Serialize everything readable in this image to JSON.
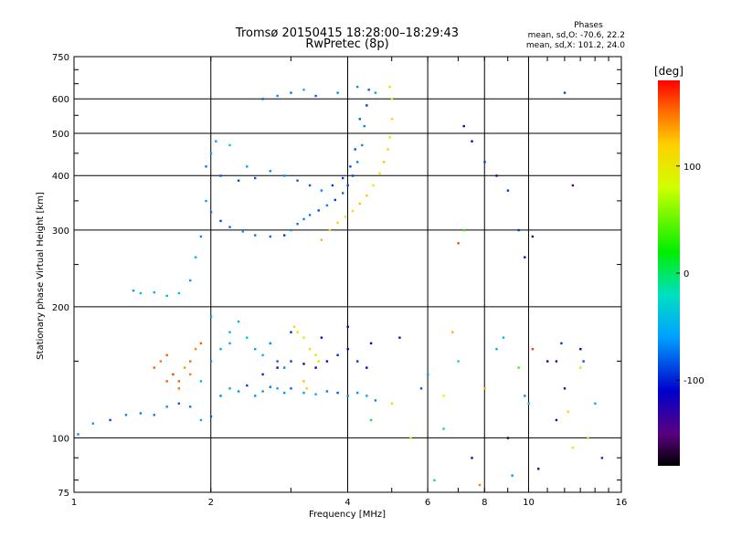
{
  "chart_data": {
    "type": "scatter",
    "title": "Tromsø 20150415 18:28:00–18:29:43",
    "subtitle": "RwPretec (8p)",
    "stats": {
      "heading": "Phases",
      "line1": "mean, sd,O: -70.6, 22.2",
      "line2": "mean, sd,X: 101.2, 24.0"
    },
    "xlabel": "Frequency [MHz]",
    "ylabel": "Stationary phase Virtual Height [km]",
    "x_scale": "log",
    "y_scale": "log",
    "xlim": [
      1,
      16
    ],
    "ylim": [
      75,
      750
    ],
    "grid": true,
    "x_ticks": [
      1,
      2,
      4,
      6,
      8,
      10,
      16
    ],
    "x_tick_labels": [
      "1",
      "2",
      "4",
      "6",
      "8",
      "10",
      "16"
    ],
    "y_ticks": [
      75,
      100,
      200,
      300,
      400,
      500,
      600,
      750
    ],
    "y_tick_labels": [
      "75",
      "100",
      "200",
      "300",
      "400",
      "500",
      "600",
      "750"
    ],
    "colorbar": {
      "label": "[deg]",
      "range": [
        -180,
        180
      ],
      "ticks": [
        100,
        0,
        -100
      ],
      "tick_labels": [
        "100",
        "0",
        "-100"
      ],
      "stops": [
        {
          "v": -180,
          "color": "#000000"
        },
        {
          "v": -150,
          "color": "#5a0080"
        },
        {
          "v": -110,
          "color": "#0000cc"
        },
        {
          "v": -60,
          "color": "#00a0ff"
        },
        {
          "v": -20,
          "color": "#00e0c0"
        },
        {
          "v": 20,
          "color": "#00ee00"
        },
        {
          "v": 80,
          "color": "#d0ff00"
        },
        {
          "v": 120,
          "color": "#ffd000"
        },
        {
          "v": 150,
          "color": "#ff7000"
        },
        {
          "v": 180,
          "color": "#ff0000"
        }
      ]
    },
    "point_groups": [
      {
        "name": "F-trace ordinary lower",
        "phase": -80,
        "jitter": 18,
        "points": [
          [
            2.0,
            330
          ],
          [
            2.1,
            315
          ],
          [
            2.2,
            305
          ],
          [
            2.35,
            298
          ],
          [
            2.5,
            292
          ],
          [
            2.7,
            290
          ],
          [
            2.9,
            292
          ],
          [
            3.0,
            300
          ],
          [
            3.1,
            310
          ],
          [
            3.2,
            318
          ],
          [
            3.3,
            325
          ],
          [
            3.45,
            333
          ],
          [
            3.6,
            342
          ],
          [
            3.75,
            352
          ],
          [
            3.9,
            365
          ],
          [
            4.0,
            380
          ],
          [
            4.1,
            400
          ],
          [
            4.2,
            430
          ],
          [
            4.3,
            470
          ],
          [
            4.35,
            520
          ],
          [
            4.4,
            580
          ],
          [
            4.45,
            630
          ]
        ]
      },
      {
        "name": "F-trace ordinary upper",
        "phase": -80,
        "jitter": 18,
        "points": [
          [
            1.95,
            420
          ],
          [
            2.1,
            400
          ],
          [
            2.3,
            390
          ],
          [
            2.5,
            395
          ],
          [
            2.7,
            410
          ],
          [
            2.9,
            400
          ],
          [
            3.1,
            390
          ],
          [
            3.3,
            380
          ],
          [
            3.5,
            370
          ],
          [
            3.7,
            380
          ],
          [
            3.9,
            395
          ],
          [
            4.05,
            420
          ],
          [
            4.15,
            460
          ],
          [
            4.25,
            540
          ]
        ]
      },
      {
        "name": "F-trace extraordinary",
        "phase": 110,
        "jitter": 20,
        "points": [
          [
            3.5,
            285
          ],
          [
            3.65,
            300
          ],
          [
            3.8,
            312
          ],
          [
            3.95,
            322
          ],
          [
            4.1,
            332
          ],
          [
            4.25,
            345
          ],
          [
            4.4,
            360
          ],
          [
            4.55,
            380
          ],
          [
            4.7,
            405
          ],
          [
            4.8,
            430
          ],
          [
            4.9,
            460
          ],
          [
            4.95,
            490
          ],
          [
            5.0,
            540
          ],
          [
            5.0,
            600
          ],
          [
            4.95,
            640
          ]
        ]
      },
      {
        "name": "F-trace diffuse",
        "phase": -55,
        "jitter": 25,
        "points": [
          [
            1.8,
            230
          ],
          [
            1.85,
            260
          ],
          [
            1.9,
            290
          ],
          [
            1.95,
            350
          ],
          [
            2.0,
            450
          ],
          [
            2.05,
            480
          ],
          [
            2.2,
            470
          ],
          [
            2.4,
            420
          ],
          [
            2.6,
            600
          ],
          [
            2.8,
            610
          ],
          [
            3.0,
            620
          ],
          [
            3.2,
            630
          ],
          [
            3.4,
            610
          ],
          [
            3.8,
            620
          ],
          [
            4.2,
            640
          ],
          [
            4.6,
            620
          ]
        ]
      },
      {
        "name": "Sporadic trace",
        "phase": -50,
        "jitter": 15,
        "points": [
          [
            1.35,
            218
          ],
          [
            1.4,
            215
          ],
          [
            1.5,
            216
          ],
          [
            1.6,
            212
          ],
          [
            1.7,
            215
          ]
        ]
      },
      {
        "name": "E-trace ordinary",
        "phase": -70,
        "jitter": 20,
        "points": [
          [
            1.02,
            102
          ],
          [
            1.1,
            108
          ],
          [
            1.2,
            110
          ],
          [
            1.3,
            113
          ],
          [
            1.4,
            114
          ],
          [
            1.5,
            113
          ],
          [
            1.6,
            118
          ],
          [
            1.7,
            120
          ],
          [
            1.8,
            118
          ],
          [
            1.9,
            110
          ],
          [
            2.0,
            112
          ],
          [
            2.1,
            125
          ],
          [
            2.2,
            130
          ],
          [
            2.3,
            128
          ],
          [
            2.4,
            132
          ],
          [
            2.5,
            125
          ],
          [
            2.6,
            128
          ],
          [
            2.7,
            131
          ],
          [
            2.8,
            130
          ],
          [
            2.9,
            127
          ],
          [
            3.0,
            130
          ],
          [
            3.2,
            127
          ],
          [
            3.4,
            126
          ],
          [
            3.6,
            128
          ],
          [
            3.8,
            127
          ],
          [
            4.0,
            125
          ],
          [
            4.2,
            127
          ],
          [
            4.4,
            125
          ],
          [
            4.6,
            122
          ]
        ]
      },
      {
        "name": "E-trace diffuse blue",
        "phase": -105,
        "jitter": 15,
        "points": [
          [
            2.6,
            140
          ],
          [
            2.8,
            145
          ],
          [
            3.0,
            150
          ],
          [
            3.2,
            148
          ],
          [
            3.4,
            145
          ],
          [
            3.6,
            150
          ],
          [
            3.8,
            155
          ],
          [
            4.0,
            160
          ],
          [
            4.2,
            150
          ],
          [
            4.4,
            145
          ],
          [
            3.0,
            175
          ],
          [
            3.5,
            170
          ],
          [
            4.0,
            180
          ],
          [
            4.5,
            165
          ]
        ]
      },
      {
        "name": "E-trace cyan upper",
        "phase": -60,
        "jitter": 20,
        "points": [
          [
            2.0,
            150
          ],
          [
            2.1,
            160
          ],
          [
            2.2,
            175
          ],
          [
            2.3,
            185
          ],
          [
            2.4,
            170
          ],
          [
            2.5,
            160
          ],
          [
            2.6,
            155
          ],
          [
            2.7,
            165
          ],
          [
            2.8,
            150
          ],
          [
            2.9,
            145
          ],
          [
            2.0,
            190
          ],
          [
            2.2,
            165
          ],
          [
            1.9,
            135
          ]
        ]
      },
      {
        "name": "E-trace orange",
        "phase": 150,
        "jitter": 15,
        "points": [
          [
            1.5,
            145
          ],
          [
            1.55,
            150
          ],
          [
            1.6,
            155
          ],
          [
            1.65,
            140
          ],
          [
            1.7,
            135
          ],
          [
            1.75,
            145
          ],
          [
            1.8,
            150
          ],
          [
            1.85,
            160
          ],
          [
            1.9,
            165
          ],
          [
            1.7,
            130
          ],
          [
            1.8,
            140
          ],
          [
            1.6,
            135
          ]
        ]
      },
      {
        "name": "E-trace yellow",
        "phase": 110,
        "jitter": 15,
        "points": [
          [
            3.05,
            180
          ],
          [
            3.1,
            175
          ],
          [
            3.2,
            170
          ],
          [
            3.3,
            160
          ],
          [
            3.4,
            155
          ],
          [
            3.45,
            150
          ],
          [
            3.2,
            135
          ],
          [
            3.25,
            130
          ]
        ]
      },
      {
        "name": "Noise scatter",
        "phase": 0,
        "jitter": 170,
        "points": [
          [
            4.5,
            110
          ],
          [
            5.0,
            120
          ],
          [
            5.5,
            100
          ],
          [
            6.0,
            140
          ],
          [
            6.5,
            105
          ],
          [
            7.0,
            150
          ],
          [
            7.5,
            90
          ],
          [
            8.0,
            130
          ],
          [
            8.5,
            160
          ],
          [
            9.0,
            100
          ],
          [
            9.5,
            145
          ],
          [
            10.0,
            120
          ],
          [
            10.5,
            85
          ],
          [
            11.0,
            150
          ],
          [
            11.5,
            110
          ],
          [
            12.0,
            130
          ],
          [
            12.5,
            95
          ],
          [
            13.0,
            145
          ],
          [
            13.5,
            100
          ],
          [
            14.0,
            120
          ],
          [
            14.5,
            90
          ],
          [
            6.2,
            80
          ],
          [
            7.8,
            78
          ],
          [
            9.2,
            82
          ],
          [
            5.2,
            170
          ],
          [
            6.8,
            175
          ],
          [
            8.8,
            170
          ],
          [
            10.2,
            160
          ],
          [
            11.8,
            165
          ],
          [
            13.2,
            150
          ],
          [
            7.2,
            300
          ],
          [
            7.0,
            280
          ],
          [
            5.8,
            130
          ],
          [
            6.5,
            125
          ],
          [
            9.8,
            125
          ],
          [
            12.2,
            115
          ]
        ]
      },
      {
        "name": "High frequency specks",
        "phase": -110,
        "jitter": 40,
        "points": [
          [
            7.2,
            520
          ],
          [
            7.5,
            480
          ],
          [
            8.0,
            430
          ],
          [
            8.5,
            400
          ],
          [
            9.0,
            370
          ],
          [
            9.5,
            300
          ],
          [
            9.8,
            260
          ],
          [
            10.2,
            290
          ],
          [
            12.0,
            620
          ],
          [
            12.5,
            380
          ],
          [
            11.5,
            150
          ],
          [
            13.0,
            160
          ]
        ]
      }
    ]
  }
}
